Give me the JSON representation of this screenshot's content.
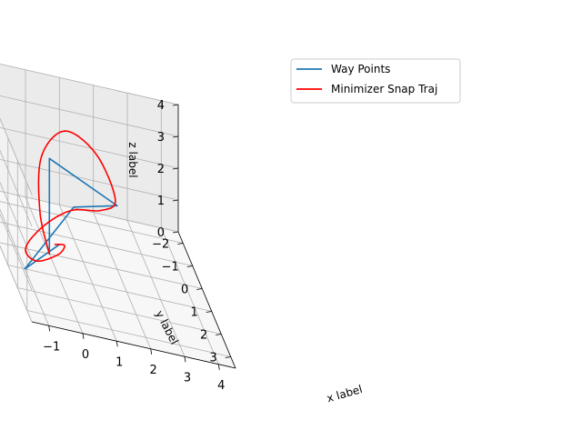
{
  "chart_data": {
    "type": "line",
    "projection": "3d",
    "xlabel": "x label",
    "ylabel": "y label",
    "zlabel": "z label",
    "xlim": [
      -1.5,
      4.5
    ],
    "ylim": [
      -2.5,
      3.5
    ],
    "zlim": [
      0,
      4
    ],
    "xticks": [
      -1,
      0,
      1,
      2,
      3,
      4
    ],
    "yticks": [
      -2,
      -1,
      0,
      1,
      2,
      3
    ],
    "zticks": [
      0,
      1,
      2,
      3,
      4
    ],
    "xtick_labels": [
      "−1",
      "0",
      "1",
      "2",
      "3",
      "4"
    ],
    "ytick_labels": [
      "−2",
      "−1",
      "0",
      "1",
      "2",
      "3"
    ],
    "ztick_labels": [
      "0",
      "1",
      "2",
      "3",
      "4"
    ],
    "grid": true,
    "legend_position": "top-right",
    "series": [
      {
        "name": "Way Points",
        "color": "#1f77b4",
        "points": [
          [
            0,
            0,
            0
          ],
          [
            0,
            0,
            3
          ],
          [
            2,
            0,
            2
          ],
          [
            1,
            -1,
            1
          ],
          [
            -1,
            1,
            0
          ],
          [
            0,
            1,
            1
          ]
        ]
      },
      {
        "name": "Minimizer Snap Traj",
        "color": "#ff0000",
        "points": [
          [
            0,
            0,
            0
          ],
          [
            -0.25,
            -0.1,
            1.2
          ],
          [
            -0.15,
            -0.3,
            2.8
          ],
          [
            0.6,
            -0.5,
            3.65
          ],
          [
            1.5,
            -0.4,
            3.2
          ],
          [
            2.0,
            -0.2,
            2.05
          ],
          [
            1.7,
            -0.6,
            1.35
          ],
          [
            0.9,
            -0.95,
            0.9
          ],
          [
            0.0,
            -0.7,
            0.35
          ],
          [
            -0.7,
            0.0,
            0.0
          ],
          [
            -0.6,
            0.8,
            0.2
          ],
          [
            -0.05,
            1.1,
            0.75
          ],
          [
            0.15,
            1.05,
            1.05
          ],
          [
            -0.1,
            0.95,
            0.95
          ]
        ]
      }
    ]
  }
}
